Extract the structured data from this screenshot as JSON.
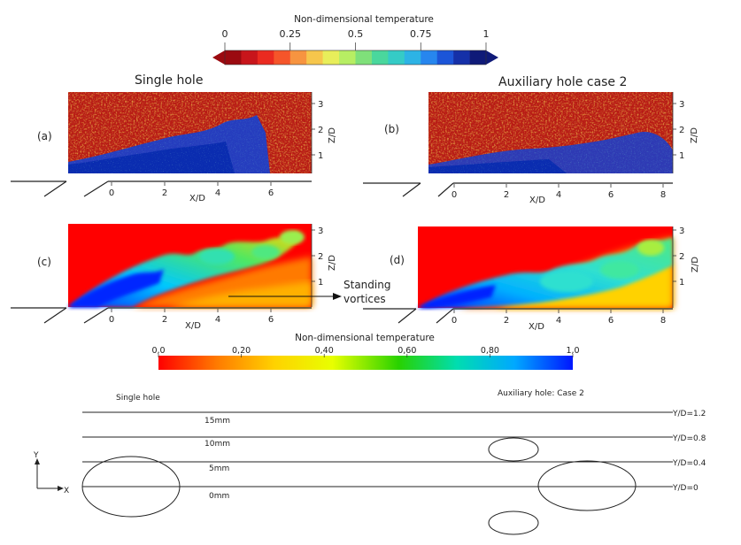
{
  "colorbar_top": {
    "title": "Non-dimensional temperature",
    "ticks": [
      "0",
      "0.25",
      "0.5",
      "0.75",
      "1"
    ],
    "colors": [
      "#9b0a10",
      "#c8151b",
      "#ea2a20",
      "#f5552a",
      "#f79440",
      "#f6c64c",
      "#e8ee5a",
      "#b7ee63",
      "#7fe07a",
      "#4ad79d",
      "#35cbc6",
      "#2db3e5",
      "#2786ee",
      "#1c55d8",
      "#1530a8",
      "#0f1a78"
    ]
  },
  "colorbar_bottom": {
    "title": "Non-dimensional temperature",
    "ticks": [
      "0,0",
      "0,20",
      "0,40",
      "0,60",
      "0,80",
      "1,0"
    ],
    "gradient": [
      "#ff0000",
      "#ff7a00",
      "#ffd200",
      "#e8ff00",
      "#28d200",
      "#00ddb0",
      "#00a8ff",
      "#0016ff"
    ]
  },
  "panels": {
    "a": {
      "label": "(a)",
      "title": "Single hole",
      "x_ticks": [
        "0",
        "2",
        "4",
        "6"
      ],
      "z_ticks": [
        "1",
        "2",
        "3"
      ],
      "x_label": "X/D",
      "z_label": "Z/D"
    },
    "b": {
      "label": "(b)",
      "title": "Auxiliary hole case 2",
      "x_ticks": [
        "0",
        "2",
        "4",
        "6",
        "8"
      ],
      "z_ticks": [
        "1",
        "2",
        "3"
      ],
      "x_label": "X/D",
      "z_label": "Z/D"
    },
    "c": {
      "label": "(c)",
      "x_ticks": [
        "0",
        "2",
        "4",
        "6"
      ],
      "z_ticks": [
        "1",
        "2",
        "3"
      ],
      "x_label": "X/D",
      "z_label": "Z/D",
      "annotation": [
        "Standing",
        "vortices"
      ]
    },
    "d": {
      "label": "(d)",
      "x_ticks": [
        "0",
        "2",
        "4",
        "6",
        "8"
      ],
      "z_ticks": [
        "1",
        "2",
        "3"
      ],
      "x_label": "X/D",
      "z_label": "Z/D"
    }
  },
  "schematic": {
    "left_title": "Single hole",
    "right_title": "Auxiliary hole: Case 2",
    "mm_labels": [
      "15mm",
      "10mm",
      "5mm",
      "0mm"
    ],
    "yd_labels": [
      "Y/D=1.2",
      "Y/D=0.8",
      "Y/D=0.4",
      "Y/D=0"
    ],
    "axis_y": "Y",
    "axis_x": "X"
  }
}
